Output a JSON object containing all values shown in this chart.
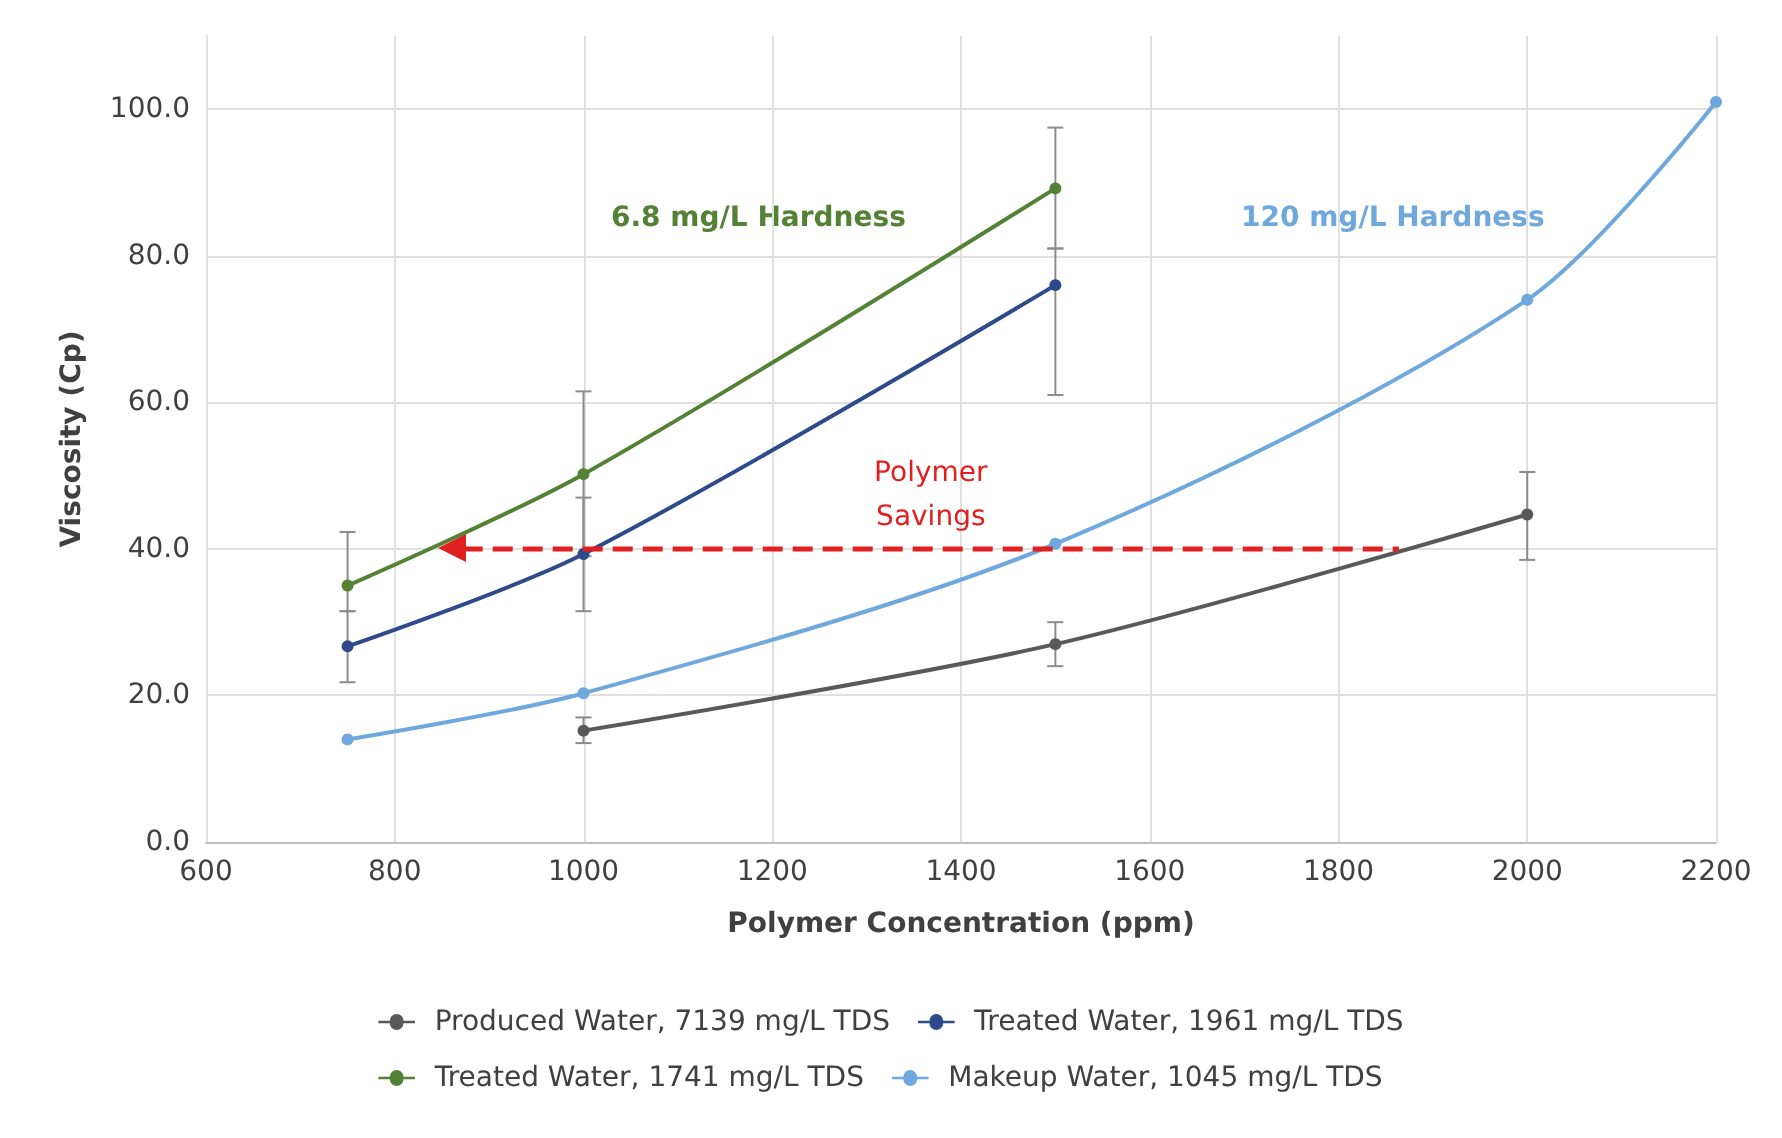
{
  "chart_data": {
    "type": "line",
    "xlabel": "Polymer Concentration (ppm)",
    "ylabel": "Viscosity (Cp)",
    "xlim": [
      600,
      2200
    ],
    "xticks": [
      600,
      800,
      1000,
      1200,
      1400,
      1600,
      1800,
      2000,
      2200
    ],
    "ylim": [
      0,
      110
    ],
    "yticks": [
      {
        "value": 0,
        "label": "0.0"
      },
      {
        "value": 20,
        "label": "20.0"
      },
      {
        "value": 40,
        "label": "40.0"
      },
      {
        "value": 60,
        "label": "60.0"
      },
      {
        "value": 80,
        "label": "80.0"
      },
      {
        "value": 100,
        "label": "100.0"
      }
    ],
    "grid": true,
    "legend": "bottom",
    "marker": "circle",
    "line_style": "solid",
    "series": [
      {
        "name": "Produced Water, 7139 mg/L TDS",
        "color": "#595959",
        "x": [
          1000,
          1500,
          2000
        ],
        "values": [
          15.2,
          27,
          44.7
        ],
        "errors": [
          [
            13.5,
            17
          ],
          [
            24,
            30
          ],
          [
            38.5,
            50.5
          ]
        ]
      },
      {
        "name": "Treated Water, 1961 mg/L TDS",
        "color": "#2f4a8a",
        "x": [
          750,
          1000,
          1500
        ],
        "values": [
          26.7,
          39.3,
          76
        ],
        "errors": [
          [
            21.8,
            31.5
          ],
          [
            31.5,
            47
          ],
          [
            61,
            81
          ]
        ]
      },
      {
        "name": "Treated Water, 1741 mg/L TDS",
        "color": "#548235",
        "x": [
          750,
          1000,
          1500
        ],
        "values": [
          35,
          50.2,
          89.2
        ],
        "errors": [
          [
            31.5,
            42.3
          ],
          [
            39,
            61.5
          ],
          [
            81,
            97.5
          ]
        ]
      },
      {
        "name": "Makeup Water, 1045 mg/L TDS",
        "color": "#6fa8dc",
        "x": [
          750,
          1000,
          1500,
          2000,
          2200
        ],
        "values": [
          14,
          20.3,
          40.7,
          74,
          101
        ]
      }
    ],
    "ref_lines": [
      {
        "axis": "y",
        "value": 40,
        "label": "Polymer\nSavings",
        "color": "#e02020",
        "line_style": "dashed"
      }
    ],
    "annotations": [
      "6.8 mg/L Hardness",
      "120 mg/L Hardness"
    ]
  }
}
